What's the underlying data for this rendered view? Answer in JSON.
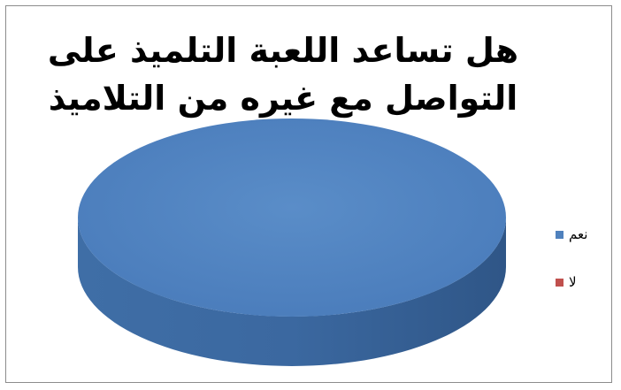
{
  "chart_data": {
    "type": "pie",
    "title": "هل  تساعد اللعبة التلميذ على التواصل مع غيره من التلاميذ ؟",
    "categories": [
      "نعم",
      "لا"
    ],
    "values": [
      100,
      0
    ],
    "colors": [
      "#4f81bd",
      "#c0504d"
    ],
    "legend_position": "right",
    "three_d": true
  }
}
